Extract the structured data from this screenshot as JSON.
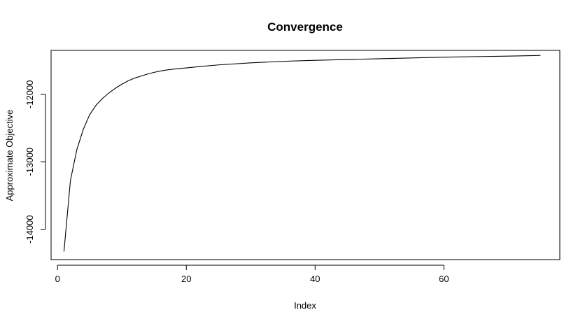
{
  "chart_data": {
    "type": "line",
    "title": "Convergence",
    "xlabel": "Index",
    "ylabel": "Approximate Objective",
    "xlim": [
      -1,
      78
    ],
    "ylim": [
      -14450,
      -11350
    ],
    "xticks": [
      0,
      20,
      40,
      60
    ],
    "yticks": [
      -14000,
      -13000,
      -12000
    ],
    "grid": false,
    "line_color": "#000000",
    "series": [
      {
        "x": [
          1,
          2,
          3,
          4,
          5,
          6,
          7,
          8,
          9,
          10,
          11,
          12,
          13,
          14,
          15,
          16,
          17,
          18,
          19,
          20,
          22,
          25,
          30,
          35,
          40,
          45,
          50,
          55,
          60,
          65,
          70,
          75
        ],
        "y": [
          -14330,
          -13280,
          -12820,
          -12520,
          -12300,
          -12160,
          -12060,
          -11980,
          -11910,
          -11850,
          -11800,
          -11760,
          -11730,
          -11700,
          -11675,
          -11655,
          -11640,
          -11628,
          -11618,
          -11610,
          -11590,
          -11565,
          -11535,
          -11512,
          -11497,
          -11485,
          -11474,
          -11462,
          -11450,
          -11442,
          -11435,
          -11425
        ]
      }
    ]
  }
}
